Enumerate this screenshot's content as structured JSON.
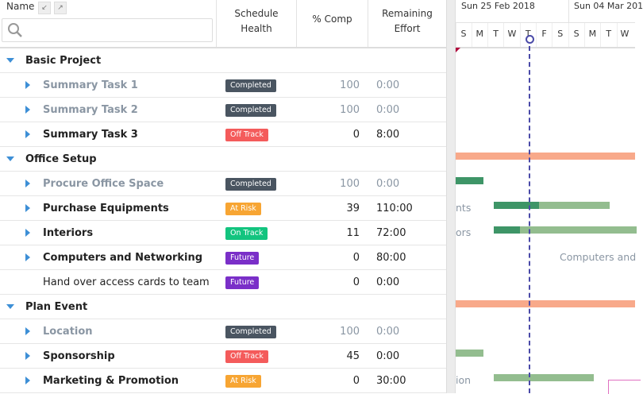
{
  "header": {
    "name": "Name",
    "columns": [
      "Schedule Health",
      "% Comp",
      "Remaining Effort"
    ]
  },
  "timeline": {
    "weeks": [
      "Sun 25 Feb 2018",
      "Sun 04 Mar 201"
    ],
    "days": [
      "S",
      "M",
      "T",
      "W",
      "T",
      "F",
      "S",
      "S",
      "M",
      "T",
      "W"
    ]
  },
  "groups": [
    {
      "name": "Basic Project",
      "tasks": [
        {
          "name": "Summary Task 1",
          "health": "Completed",
          "health_color": "#4a5561",
          "comp": 100,
          "effort": "0:00",
          "color": "#8a96a3",
          "expandable": true
        },
        {
          "name": "Summary Task 2",
          "health": "Completed",
          "health_color": "#4a5561",
          "comp": 100,
          "effort": "0:00",
          "color": "#8a96a3",
          "expandable": true
        },
        {
          "name": "Summary Task 3",
          "health": "Off Track",
          "health_color": "#f45b5b",
          "comp": 0,
          "effort": "8:00",
          "color": "#222222",
          "expandable": true
        }
      ]
    },
    {
      "name": "Office Setup",
      "tasks": [
        {
          "name": "Procure Office Space",
          "health": "Completed",
          "health_color": "#4a5561",
          "comp": 100,
          "effort": "0:00",
          "color": "#8a96a3",
          "expandable": true
        },
        {
          "name": "Purchase Equipments",
          "health": "At Risk",
          "health_color": "#f7a533",
          "comp": 39,
          "effort": "110:00",
          "color": "#222222",
          "expandable": true
        },
        {
          "name": "Interiors",
          "health": "On Track",
          "health_color": "#13c47f",
          "comp": 11,
          "effort": "72:00",
          "color": "#222222",
          "expandable": true
        },
        {
          "name": "Computers and Networking",
          "health": "Future",
          "health_color": "#7a2fc8",
          "comp": 0,
          "effort": "80:00",
          "color": "#222222",
          "expandable": true
        },
        {
          "name": "Hand over access cards to team",
          "health": "Future",
          "health_color": "#7a2fc8",
          "comp": 0,
          "effort": "0:00",
          "color": "#222222",
          "expandable": false
        }
      ]
    },
    {
      "name": "Plan Event",
      "tasks": [
        {
          "name": "Location",
          "health": "Completed",
          "health_color": "#4a5561",
          "comp": 100,
          "effort": "0:00",
          "color": "#8a96a3",
          "expandable": true
        },
        {
          "name": "Sponsorship",
          "health": "Off Track",
          "health_color": "#f45b5b",
          "comp": 45,
          "effort": "0:00",
          "color": "#222222",
          "expandable": true
        },
        {
          "name": "Marketing & Promotion",
          "health": "At Risk",
          "health_color": "#f7a533",
          "comp": 0,
          "effort": "30:00",
          "color": "#222222",
          "expandable": true
        }
      ]
    }
  ],
  "gantt_labels": [
    "nts",
    "ors",
    "Computers and",
    "ion"
  ]
}
